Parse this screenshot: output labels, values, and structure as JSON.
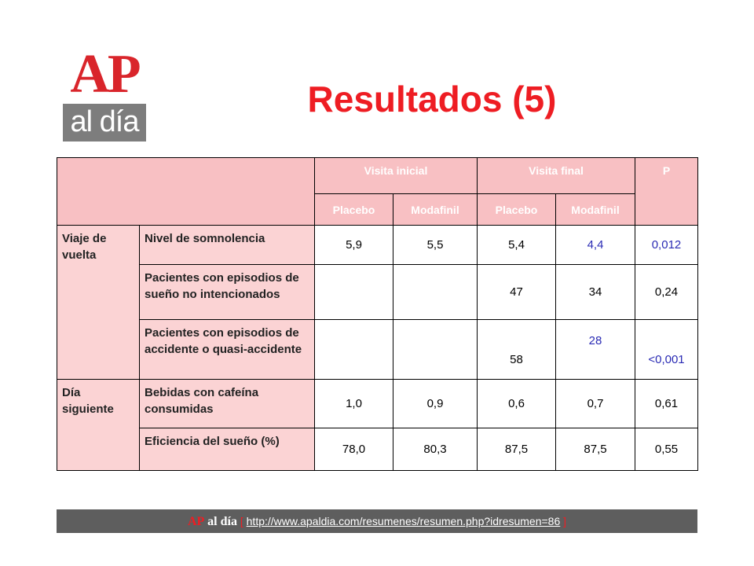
{
  "logo": {
    "top": "AP",
    "bottom": "al día"
  },
  "title": "Resultados  (5)",
  "table": {
    "group_headers": [
      "Visita inicial",
      "Visita final",
      "P"
    ],
    "sub_headers": [
      "Placebo",
      "Modafinil",
      "Placebo",
      "Modafinil"
    ],
    "groups": [
      {
        "label": "Viaje de vuelta"
      },
      {
        "label": "Día siguiente"
      }
    ],
    "rows": [
      {
        "label": "Nivel de somnolencia",
        "values": [
          "5,9",
          "5,5",
          "5,4",
          "4,4",
          "0,012"
        ]
      },
      {
        "label": "Pacientes con episodios de sueño no intencionados",
        "values": [
          "",
          "",
          "47",
          "34",
          "0,24"
        ]
      },
      {
        "label": "Pacientes con episodios de accidente o quasi-accidente",
        "values": [
          "",
          "",
          "58",
          "28",
          "<0,001"
        ]
      },
      {
        "label": "Bebidas con cafeína consumidas",
        "values": [
          "1,0",
          "0,9",
          "0,6",
          "0,7",
          "0,61"
        ]
      },
      {
        "label": "Eficiencia del sueño (%)",
        "values": [
          "78,0",
          "80,3",
          "87,5",
          "87,5",
          "0,55"
        ]
      }
    ]
  },
  "footer": {
    "ap": "AP",
    "aldia": "al día",
    "open": "[",
    "url": "http://www.apaldia.com/resumenes/resumen.php?idresumen=86",
    "close": "]"
  }
}
